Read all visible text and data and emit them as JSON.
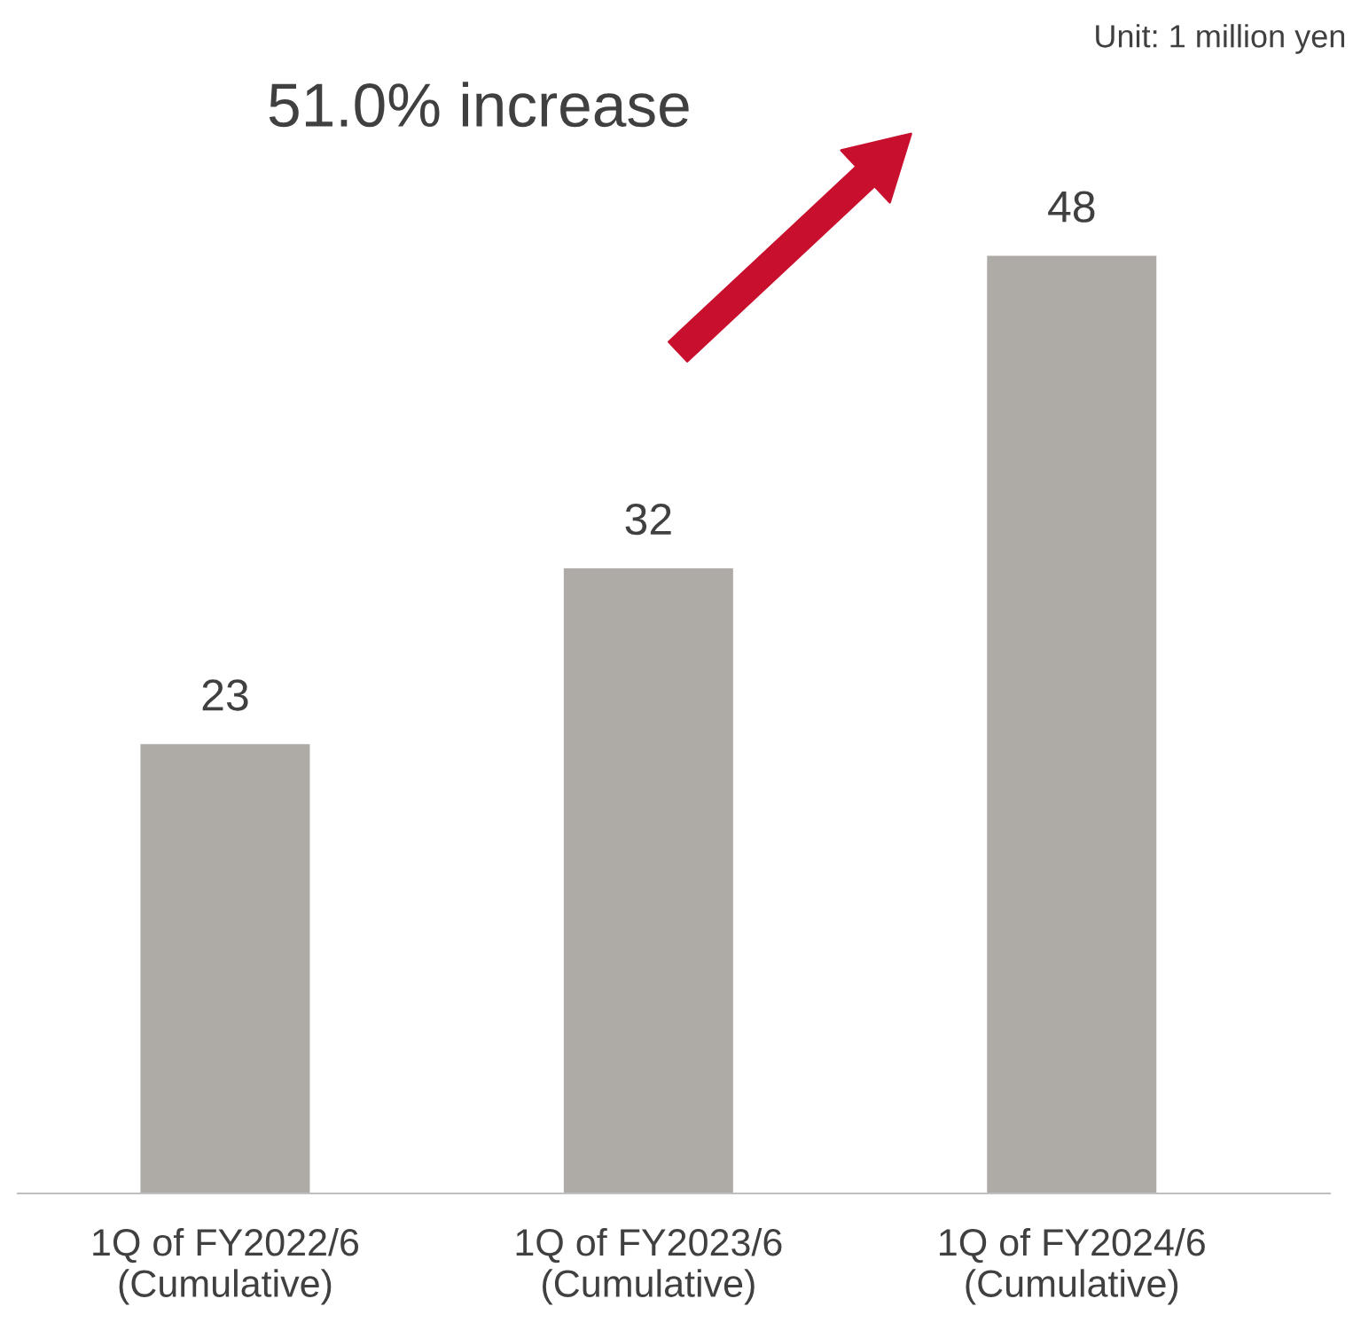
{
  "chart_data": {
    "type": "bar",
    "categories": [
      "1Q of FY2022/6\n(Cumulative)",
      "1Q of FY2023/6\n(Cumulative)",
      "1Q of FY2024/6\n(Cumulative)"
    ],
    "values": [
      23,
      32,
      48
    ],
    "color": "#aeaaa6",
    "data_labels": true,
    "grid": false,
    "legend": false,
    "annotations": [
      "Unit: 1 million yen",
      "51.0% increase"
    ]
  }
}
